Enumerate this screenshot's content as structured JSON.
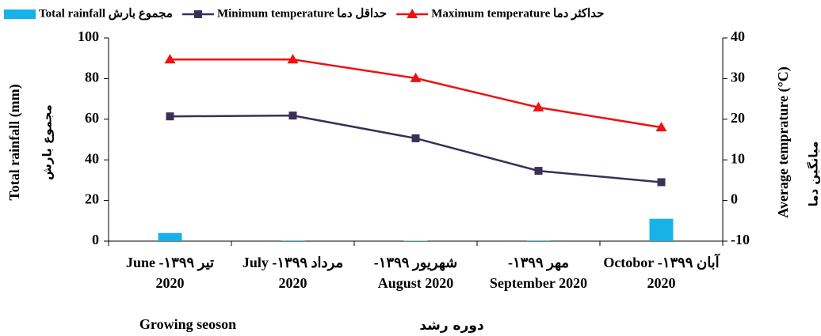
{
  "chart_data": {
    "type": "bar-line",
    "categories": [
      "تیر ۱۳۹۹- June 2020",
      "مرداد ۱۳۹۹- July 2020",
      "شهریور ۱۳۹۹- August 2020",
      "مهر ۱۳۹۹- September 2020",
      "آبان ۱۳۹۹- Octobor 2020"
    ],
    "series": [
      {
        "name": "Total rainfall مجموع بارش",
        "type": "bar",
        "color": "#19b2e8",
        "axis": "y",
        "values": [
          4,
          0.3,
          0.2,
          0.3,
          11
        ]
      },
      {
        "name": "Minimum temperature حداقل دما",
        "type": "line",
        "marker": "square",
        "color": "#3b2f58",
        "axis": "y2",
        "values": [
          20.7,
          20.9,
          15.3,
          7.3,
          4.5
        ]
      },
      {
        "name": "Maximum temperature حداکثر دما",
        "type": "line",
        "marker": "triangle",
        "color": "#ee1111",
        "axis": "y2",
        "values": [
          34.7,
          34.7,
          30.1,
          22.9,
          18.0
        ]
      }
    ],
    "xlabel": "Growing seoson",
    "xlabel_fa": "دوره رشد",
    "ylabel": "Total rainfall (mm)",
    "ylabel_fa": "مجموع بارش",
    "y2label": "Average temprature (°C)",
    "y2label_fa": "میانگین دما",
    "ylim": [
      0,
      100
    ],
    "yticks": [
      0,
      20,
      40,
      60,
      80,
      100
    ],
    "y2lim": [
      -10,
      40
    ],
    "y2ticks": [
      -10,
      0,
      10,
      20,
      30,
      40
    ],
    "legend": "top"
  }
}
